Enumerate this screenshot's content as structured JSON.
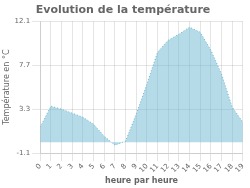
{
  "chart_data": {
    "type": "area",
    "title": "Evolution de la température",
    "xlabel": "heure par heure",
    "ylabel": "Température en °C",
    "x": [
      0,
      1,
      2,
      3,
      4,
      5,
      6,
      7,
      8,
      9,
      10,
      11,
      12,
      13,
      14,
      15,
      16,
      17,
      18,
      19
    ],
    "values": [
      1.5,
      3.6,
      3.3,
      2.9,
      2.5,
      1.8,
      0.6,
      -0.3,
      0.1,
      2.8,
      5.8,
      9.0,
      10.2,
      10.8,
      11.5,
      11.0,
      9.2,
      6.8,
      3.5,
      2.0
    ],
    "color": "#6ab8d0",
    "line_style": "dotted",
    "xlim": [
      0,
      19
    ],
    "xticks": [
      0,
      1,
      2,
      3,
      4,
      5,
      6,
      7,
      8,
      9,
      10,
      11,
      12,
      13,
      14,
      15,
      16,
      17,
      18,
      19
    ],
    "ylim": [
      -1.1,
      12.1
    ],
    "yticks": [
      -1.1,
      3.3,
      7.7,
      12.1
    ],
    "grid": true
  }
}
